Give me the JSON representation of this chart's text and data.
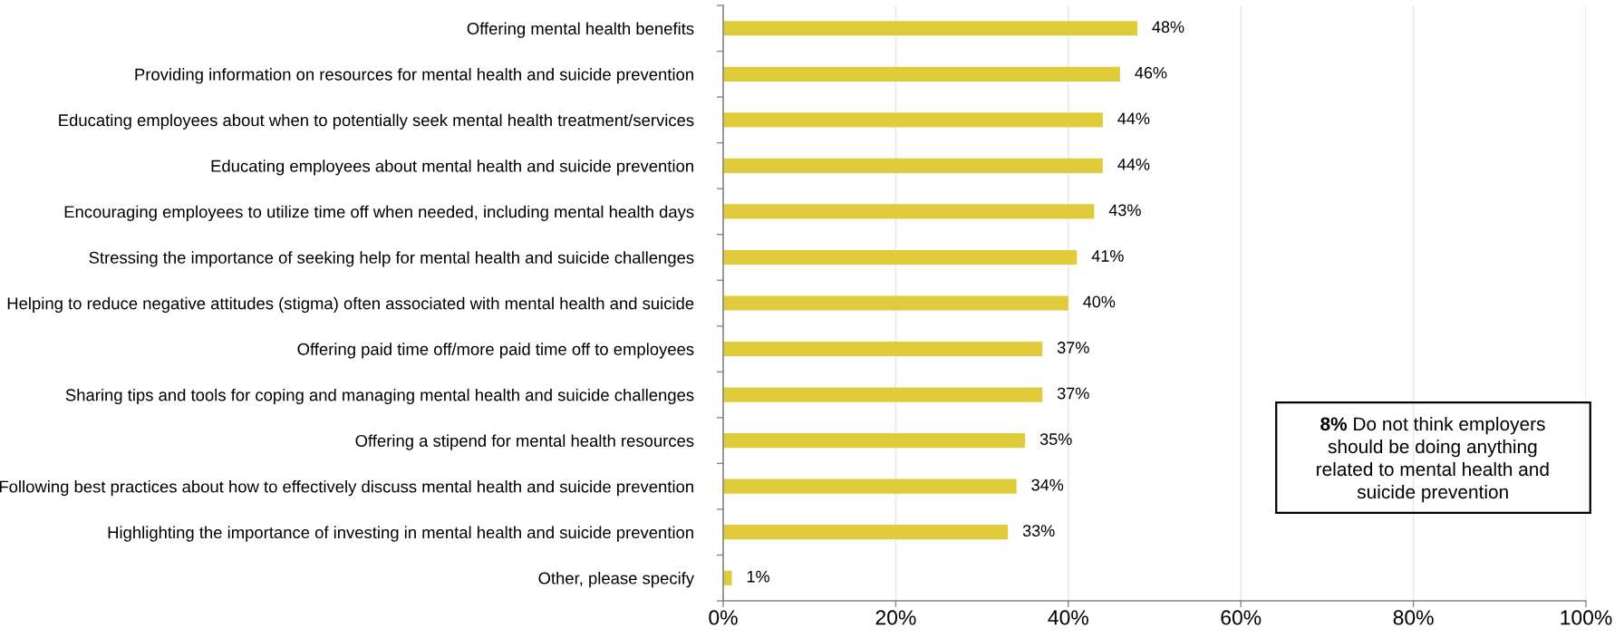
{
  "chart_data": {
    "type": "bar",
    "orientation": "horizontal",
    "categories": [
      "Offering mental health benefits",
      "Providing information on resources for mental health and suicide prevention",
      "Educating employees about when to potentially seek mental health treatment/services",
      "Educating employees about mental health and suicide prevention",
      "Encouraging employees to utilize time off when needed, including mental health days",
      "Stressing the importance of seeking help for mental health and suicide challenges",
      "Helping to reduce negative attitudes (stigma) often associated with mental health and suicide",
      "Offering paid time off/more paid time off to employees",
      "Sharing tips and tools for coping and managing mental health and suicide challenges",
      "Offering a stipend for mental health resources",
      "Following best practices about how to effectively discuss mental health and suicide prevention",
      "Highlighting the importance of investing in mental health and suicide prevention",
      "Other, please specify"
    ],
    "values": [
      48,
      46,
      44,
      44,
      43,
      41,
      40,
      37,
      37,
      35,
      34,
      33,
      1
    ],
    "value_labels": [
      "48%",
      "46%",
      "44%",
      "44%",
      "43%",
      "41%",
      "40%",
      "37%",
      "37%",
      "35%",
      "34%",
      "33%",
      "1%"
    ],
    "color": "#e0cc3a",
    "xlim": [
      0,
      100
    ],
    "xticks": [
      {
        "value": 0,
        "label": "0%"
      },
      {
        "value": 20,
        "label": "20%"
      },
      {
        "value": 40,
        "label": "40%"
      },
      {
        "value": 60,
        "label": "60%"
      },
      {
        "value": 80,
        "label": "80%"
      },
      {
        "value": 100,
        "label": "100%"
      }
    ],
    "grid": "x",
    "annotations": [
      "8% Do not think employers should be doing anything related to mental health and suicide prevention"
    ]
  }
}
